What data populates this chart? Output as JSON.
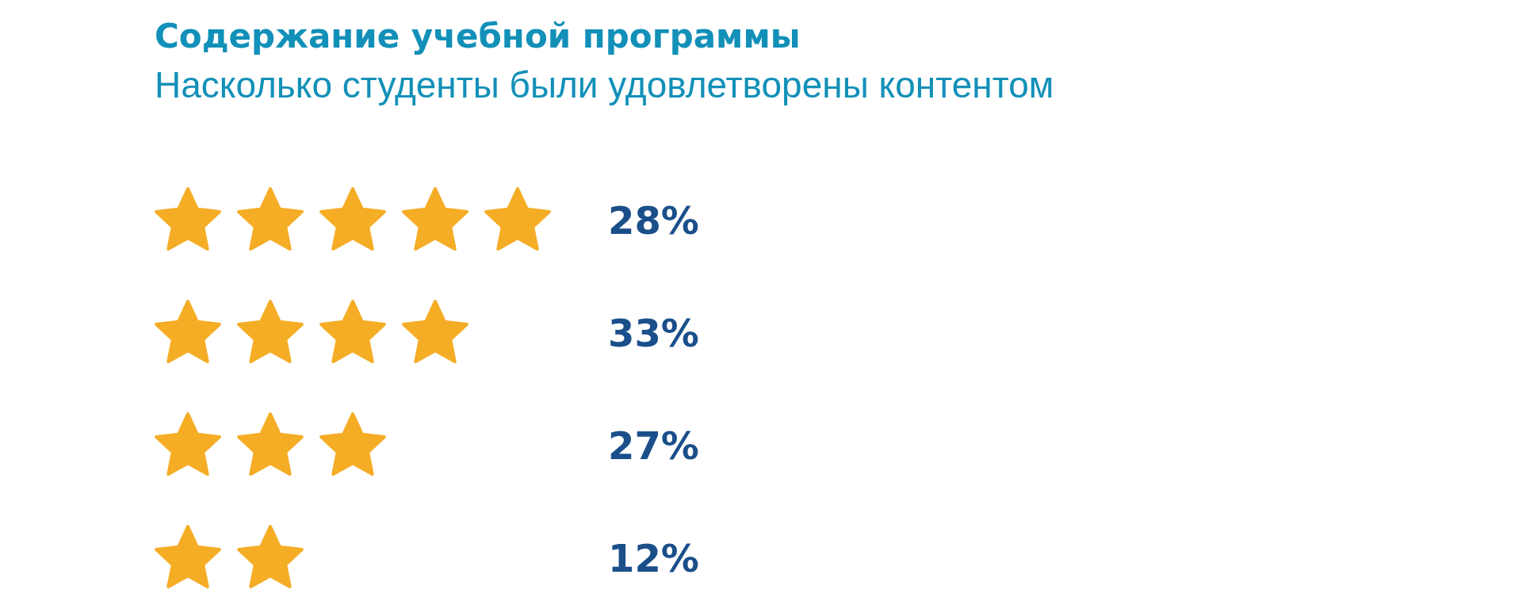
{
  "chart_data": {
    "type": "other",
    "title": "Содержание учебной программы",
    "subtitle": "Насколько студенты были удовлетворены контентом",
    "categories": [
      null,
      null,
      null,
      null
    ],
    "values": [
      28,
      33,
      27,
      12
    ],
    "value_labels": [
      "28%",
      "33%",
      "27%",
      "12%"
    ],
    "color": "#f5ad26"
  }
}
